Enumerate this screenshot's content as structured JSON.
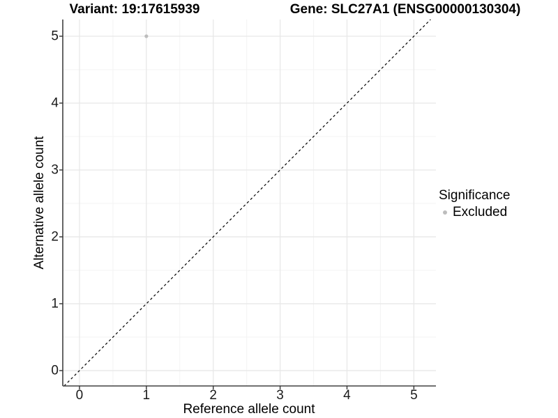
{
  "chart_data": {
    "type": "scatter",
    "titles": {
      "left": "Variant: 19:17615939",
      "right": "Gene: SLC27A1 (ENSG00000130304)"
    },
    "xlabel": "Reference allele count",
    "ylabel": "Alternative allele count",
    "x_ticks": [
      0,
      1,
      2,
      3,
      4,
      5
    ],
    "y_ticks": [
      0,
      1,
      2,
      3,
      4,
      5
    ],
    "x_minor_ticks": [
      0.5,
      1.5,
      2.5,
      3.5,
      4.5
    ],
    "y_minor_ticks": [
      0.5,
      1.5,
      2.5,
      3.5,
      4.5
    ],
    "xlim": [
      -0.25,
      5.33
    ],
    "ylim": [
      -0.23,
      5.25
    ],
    "grid": "major+minor",
    "points": [
      {
        "x": 1,
        "y": 5,
        "significance": "Excluded"
      }
    ],
    "reference_line": {
      "type": "identity",
      "slope": 1,
      "intercept": 0,
      "style": "dashed",
      "color": "#000000"
    },
    "legend": {
      "title": "Significance",
      "position": "right",
      "entries": [
        {
          "label": "Excluded",
          "color": "#bdbdbd",
          "marker": "circle"
        }
      ]
    },
    "colors": {
      "point_excluded": "#bdbdbd",
      "grid_major": "#e8e8e8",
      "grid_minor": "#f3f3f3",
      "axis_line": "#404040",
      "tick_mark": "#333333",
      "background": "#ffffff"
    }
  }
}
